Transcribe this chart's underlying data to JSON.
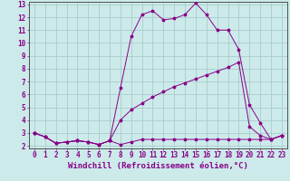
{
  "title": "",
  "xlabel": "Windchill (Refroidissement éolien,°C)",
  "ylabel": "",
  "xlim": [
    -0.5,
    23.5
  ],
  "ylim": [
    1.8,
    13.2
  ],
  "xticks": [
    0,
    1,
    2,
    3,
    4,
    5,
    6,
    7,
    8,
    9,
    10,
    11,
    12,
    13,
    14,
    15,
    16,
    17,
    18,
    19,
    20,
    21,
    22,
    23
  ],
  "yticks": [
    2,
    3,
    4,
    5,
    6,
    7,
    8,
    9,
    10,
    11,
    12,
    13
  ],
  "background_color": "#cceaea",
  "grid_color": "#aacccc",
  "line_color": "#880088",
  "line1_x": [
    0,
    1,
    2,
    3,
    4,
    5,
    6,
    7,
    8,
    9,
    10,
    11,
    12,
    13,
    14,
    15,
    16,
    17,
    18,
    19,
    20,
    21,
    22,
    23
  ],
  "line1_y": [
    3.0,
    2.7,
    2.2,
    2.3,
    2.4,
    2.3,
    2.1,
    2.4,
    2.1,
    2.3,
    2.5,
    2.5,
    2.5,
    2.5,
    2.5,
    2.5,
    2.5,
    2.5,
    2.5,
    2.5,
    2.5,
    2.5,
    2.5,
    2.8
  ],
  "line2_x": [
    0,
    1,
    2,
    3,
    4,
    5,
    6,
    7,
    8,
    9,
    10,
    11,
    12,
    13,
    14,
    15,
    16,
    17,
    18,
    19,
    20,
    21,
    22,
    23
  ],
  "line2_y": [
    3.0,
    2.7,
    2.2,
    2.3,
    2.4,
    2.3,
    2.1,
    2.4,
    4.0,
    4.8,
    5.3,
    5.8,
    6.2,
    6.6,
    6.9,
    7.2,
    7.5,
    7.8,
    8.1,
    8.5,
    3.5,
    2.8,
    2.5,
    2.8
  ],
  "line3_x": [
    0,
    1,
    2,
    3,
    4,
    5,
    6,
    7,
    8,
    9,
    10,
    11,
    12,
    13,
    14,
    15,
    16,
    17,
    18,
    19,
    20,
    21,
    22,
    23
  ],
  "line3_y": [
    3.0,
    2.7,
    2.2,
    2.3,
    2.4,
    2.3,
    2.1,
    2.4,
    6.5,
    10.5,
    12.2,
    12.5,
    11.8,
    11.9,
    12.2,
    13.1,
    12.2,
    11.0,
    11.0,
    9.5,
    5.2,
    3.8,
    2.5,
    2.8
  ],
  "tick_fontsize": 5.5,
  "xlabel_fontsize": 6.5,
  "marker": "*",
  "marker_size": 2.5,
  "linewidth": 0.7
}
